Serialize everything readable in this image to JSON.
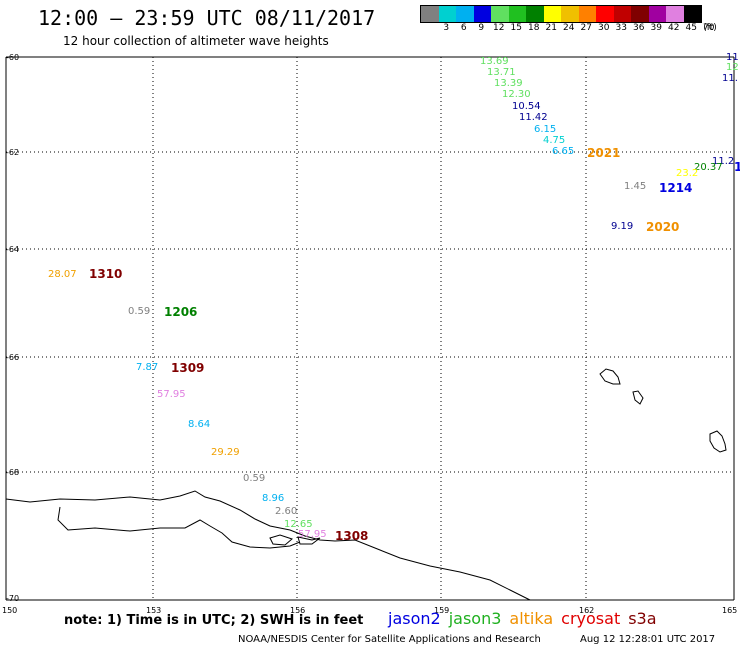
{
  "header": {
    "title": "12:00 – 23:59 UTC 08/11/2017",
    "subtitle": "12 hour collection of altimeter wave heights"
  },
  "scale": {
    "unit": "(ft)",
    "labels": [
      "3",
      "6",
      "9",
      "12",
      "15",
      "18",
      "21",
      "24",
      "27",
      "30",
      "33",
      "36",
      "39",
      "42",
      "45",
      "70"
    ],
    "colors": [
      "#808080",
      "#00d0d0",
      "#00b0f0",
      "#0000e0",
      "#60e060",
      "#20c020",
      "#008000",
      "#ffff00",
      "#f0c000",
      "#ff8000",
      "#ff0000",
      "#c00000",
      "#800000",
      "#a000a0",
      "#e080e0",
      "#000000"
    ]
  },
  "axes": {
    "lat_labels": [
      "-60",
      "-62",
      "-64",
      "-66",
      "-68",
      "-70"
    ],
    "lon_labels": [
      "150",
      "153",
      "156",
      "159",
      "162",
      "165"
    ]
  },
  "observations": [
    {
      "text": "13.69",
      "color": "#60e060"
    },
    {
      "text": "13.71",
      "color": "#60e060"
    },
    {
      "text": "13.39",
      "color": "#60e060"
    },
    {
      "text": "12.30",
      "color": "#60e060"
    },
    {
      "text": "10.54",
      "color": "#000090"
    },
    {
      "text": "11.42",
      "color": "#000090"
    },
    {
      "text": "6.15",
      "color": "#00b0f0"
    },
    {
      "text": "4.75",
      "color": "#00d0d0"
    },
    {
      "text": "6.65",
      "color": "#00b0f0"
    },
    {
      "text": "11",
      "color": "#000090"
    },
    {
      "text": "12",
      "color": "#60e060"
    },
    {
      "text": "11.",
      "color": "#000090"
    },
    {
      "text": "11.2",
      "color": "#000090"
    },
    {
      "text": "20.37",
      "color": "#008000"
    },
    {
      "text": "23.2",
      "color": "#ffff00"
    },
    {
      "text": "1.45",
      "color": "#808080"
    },
    {
      "text": "9.19",
      "color": "#000090"
    },
    {
      "text": "28.07",
      "color": "#f0a000"
    },
    {
      "text": "0.59",
      "color": "#808080"
    },
    {
      "text": "7.87",
      "color": "#00b0f0"
    },
    {
      "text": "57.95",
      "color": "#e080e0"
    },
    {
      "text": "8.64",
      "color": "#00b0f0"
    },
    {
      "text": "29.29",
      "color": "#f0a000"
    },
    {
      "text": "0.59",
      "color": "#808080"
    },
    {
      "text": "8.96",
      "color": "#00b0f0"
    },
    {
      "text": "2.60",
      "color": "#808080"
    },
    {
      "text": "12.65",
      "color": "#60e060"
    },
    {
      "text": "57.95",
      "color": "#e080e0"
    }
  ],
  "times": [
    {
      "text": "2021",
      "color": "#f09000"
    },
    {
      "text": "1214",
      "color": "#0000e0"
    },
    {
      "text": "2020",
      "color": "#f09000"
    },
    {
      "text": "1",
      "color": "#0000e0"
    },
    {
      "text": "1310",
      "color": "#800000"
    },
    {
      "text": "1206",
      "color": "#008000"
    },
    {
      "text": "1309",
      "color": "#800000"
    },
    {
      "text": "1308",
      "color": "#800000"
    }
  ],
  "footer": {
    "note": "note: 1) Time is in UTC; 2) SWH is in feet",
    "legend": [
      {
        "name": "jason2",
        "color": "#0000e0"
      },
      {
        "name": "jason3",
        "color": "#20b020"
      },
      {
        "name": "altika",
        "color": "#f09000"
      },
      {
        "name": "cryosat",
        "color": "#e00000"
      },
      {
        "name": "s3a",
        "color": "#800000"
      }
    ],
    "credit": "NOAA/NESDIS Center for Satellite Applications and Research",
    "timestamp": "Aug 12 12:28:01 UTC 2017"
  }
}
